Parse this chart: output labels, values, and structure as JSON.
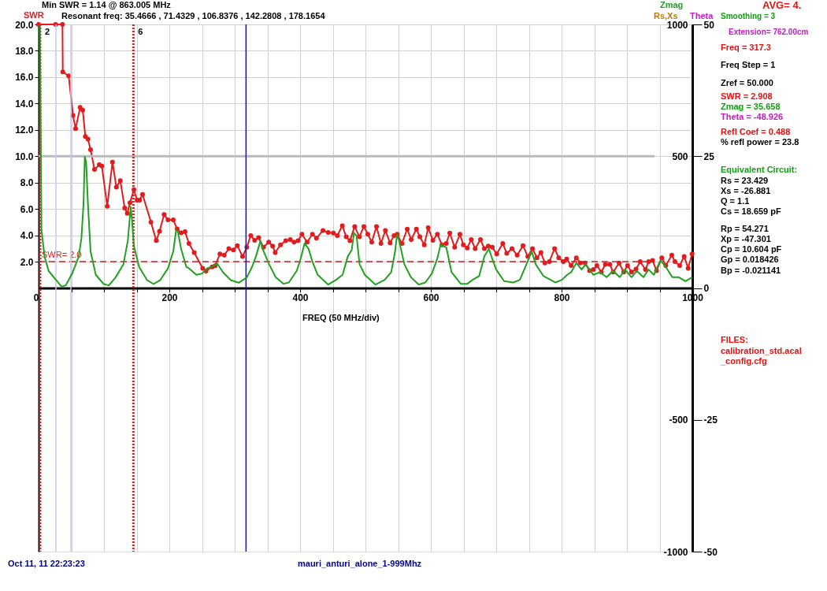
{
  "chart_data": {
    "type": "line",
    "xlabel": "FREQ (50 MHz/div)",
    "y3label": "Rs,Xs",
    "xlim": [
      0,
      1000
    ],
    "xticks": [
      0,
      {
        "value": 50,
        "label": null
      },
      {
        "value": 100,
        "label": null
      },
      {
        "value": 150,
        "label": null
      },
      200,
      {
        "value": 250,
        "label": null
      },
      {
        "value": 300,
        "label": null
      },
      {
        "value": 350,
        "label": null
      },
      400,
      {
        "value": 450,
        "label": null
      },
      {
        "value": 500,
        "label": null
      },
      {
        "value": 550,
        "label": null
      },
      600,
      {
        "value": 650,
        "label": null
      },
      {
        "value": 700,
        "label": null
      },
      {
        "value": 750,
        "label": null
      },
      800,
      {
        "value": 850,
        "label": null
      },
      {
        "value": 900,
        "label": null
      },
      {
        "value": 950,
        "label": null
      },
      1000
    ],
    "ylim": [
      -20,
      20
    ],
    "yticks": [
      {
        "value": 2,
        "label": "2.0"
      },
      {
        "value": 4,
        "label": "4.0"
      },
      {
        "value": 6,
        "label": "6.0"
      },
      {
        "value": 8,
        "label": "8.0"
      },
      {
        "value": 10,
        "label": "10.0"
      },
      {
        "value": 12,
        "label": "12.0"
      },
      {
        "value": 14,
        "label": "14.0"
      },
      {
        "value": 16,
        "label": "16.0"
      },
      {
        "value": 18,
        "label": "18.0"
      },
      {
        "value": 20,
        "label": "20.0"
      }
    ],
    "y2lim": [
      -1000,
      1000
    ],
    "y2ticks": [
      1000,
      500,
      {
        "value": 0,
        "label": null
      },
      -500,
      -1000
    ],
    "y3lim": [
      -50,
      50
    ],
    "y3ticks": [
      50,
      25,
      0,
      -25,
      -50
    ],
    "grid": true,
    "series": [
      {
        "name": "SWR",
        "color": "#e41a1c",
        "marker": "circle",
        "x": [
          0,
          26,
          36.5,
          37,
          46,
          52.6,
          56.6,
          63.5,
          67.5,
          71.5,
          75.5,
          79.5,
          85.5,
          92.8,
          96.8,
          105,
          113,
          119,
          125,
          131.7,
          135.7,
          139.8,
          145.8,
          150.6,
          154.6,
          159,
          171.9,
          180,
          185,
          192,
          198,
          206,
          212,
          218,
          224,
          230,
          238,
          251,
          256,
          265.5,
          270,
          277.5,
          284,
          291,
          298,
          304,
          312,
          318.5,
          324.5,
          330.5,
          336.5,
          344,
          352,
          358,
          362,
          370,
          378,
          385,
          390.7,
          396.8,
          402.8,
          410.8,
          418.9,
          425,
          435,
          443,
          451,
          457,
          464.6,
          470.6,
          476.3,
          483.5,
          490.7,
          497.6,
          503.6,
          509.6,
          516.9,
          523.7,
          530.5,
          537.7,
          543.7,
          548.6,
          555.8,
          563.9,
          569.9,
          577.9,
          583.2,
          590,
          596,
          603.2,
          610,
          617,
          623.5,
          629,
          636.5,
          644.5,
          649.7,
          655.7,
          661.8,
          667.8,
          675.9,
          681.9,
          687.9,
          694,
          700.8,
          710,
          716.1,
          724.1,
          732.1,
          741,
          748.3,
          755.5,
          762.3,
          768.4,
          774.4,
          781.3,
          789.3,
          795.7,
          802.6,
          807.8,
          814.6,
          822.6,
          828.7,
          835.9,
          842.8,
          848.8,
          854,
          860.8,
          866.9,
          873.7,
          879,
          888,
          895,
          901,
          907,
          913.9,
          920.3,
          928.3,
          933.2,
          939.2,
          945.3,
          953.3,
          959.4,
          968.6,
          973.5,
          980.7,
          987.5,
          993.6,
          999.6
        ],
        "values": [
          20,
          20,
          20,
          16.4,
          16.1,
          13.1,
          12.1,
          13.7,
          13.5,
          11.5,
          11.3,
          10.5,
          9.0,
          9.35,
          9.25,
          6.2,
          9.55,
          7.65,
          8.15,
          6.07,
          5.67,
          6.47,
          7.46,
          6.67,
          6.67,
          7.1,
          5.0,
          3.6,
          4.3,
          5.57,
          5.17,
          5.17,
          4.48,
          4.18,
          4.28,
          3.38,
          2.69,
          1.49,
          1.29,
          1.6,
          1.69,
          2.59,
          2.49,
          2.99,
          2.89,
          3.22,
          2.39,
          3.09,
          3.98,
          3.62,
          3.82,
          3.09,
          3.48,
          3.18,
          2.69,
          3.28,
          3.58,
          3.68,
          3.48,
          3.58,
          4.08,
          3.48,
          4.08,
          3.78,
          4.37,
          4.21,
          4.17,
          3.98,
          4.73,
          3.88,
          3.58,
          4.67,
          3.88,
          4.67,
          4.08,
          3.48,
          4.67,
          3.38,
          4.37,
          3.42,
          3.98,
          4.08,
          3.38,
          4.47,
          3.68,
          4.47,
          3.88,
          3.28,
          4.57,
          3.62,
          4.08,
          3.28,
          3.38,
          4.17,
          3.09,
          4.08,
          3.28,
          3.03,
          3.68,
          2.99,
          3.68,
          2.99,
          3.18,
          3.09,
          2.59,
          3.38,
          2.63,
          2.99,
          2.49,
          3.22,
          2.39,
          2.99,
          2.29,
          2.69,
          1.9,
          2.0,
          2.99,
          2.29,
          2.0,
          2.2,
          1.7,
          2.29,
          1.9,
          1.9,
          1.31,
          1.4,
          1.7,
          1.21,
          1.8,
          1.8,
          1.21,
          1.9,
          1.21,
          1.7,
          1.21,
          1.44,
          2.0,
          1.4,
          2.0,
          2.1,
          1.31,
          2.29,
          1.7,
          2.49,
          2.0,
          1.7,
          2.39,
          1.5,
          2.59
        ]
      },
      {
        "name": "Zmag",
        "color": "#22a022",
        "axis": "y2",
        "marker": "none",
        "x": [
          2,
          4.4,
          9.2,
          15.3,
          25.3,
          35.3,
          41.4,
          51.4,
          61.4,
          65.5,
          68.7,
          70.7,
          72.7,
          75.5,
          79.5,
          87.5,
          99.6,
          107.6,
          117.7,
          129.7,
          136.5,
          140.9,
          142.9,
          145.8,
          153.8,
          165.9,
          175.9,
          186,
          198,
          206,
          210.4,
          213,
          218,
          226,
          230,
          241.4,
          250,
          258,
          266,
          273.5,
          282,
          294,
          306,
          318.5,
          326.5,
          332.5,
          339.4,
          342.6,
          352.6,
          362.7,
          374.7,
          382.8,
          394.8,
          400.8,
          406.8,
          412.9,
          418.9,
          426.9,
          443,
          455,
          465,
          473,
          479,
          482.4,
          486.3,
          491,
          499,
          515.3,
          529.4,
          539.4,
          545.4,
          548.3,
          551.5,
          559.5,
          569.5,
          581.6,
          591.6,
          601.6,
          609.7,
          614.9,
          623.7,
          631.7,
          645.8,
          655.9,
          663.9,
          673.9,
          681.9,
          688.8,
          694,
          700,
          712.1,
          726.2,
          736.2,
          746.3,
          754.3,
          760.4,
          772.4,
          790.5,
          800.5,
          808.6,
          814.6,
          822.6,
          830.7,
          836.7,
          848.8,
          858.8,
          868.9,
          878.9,
          889,
          897,
          907,
          915,
          925.1,
          933.2,
          941.2,
          951.2,
          959.4,
          969.4,
          979.4,
          989.5,
          999.6
        ],
        "values": [
          1000,
          219,
          119,
          65,
          35,
          5,
          10,
          55,
          119,
          189,
          318,
          498,
          478,
          318,
          139,
          50,
          15,
          10,
          40,
          90,
          179,
          308,
          259,
          159,
          80,
          30,
          15,
          30,
          75,
          139,
          219,
          214,
          149,
          80,
          75,
          50,
          55,
          75,
          82,
          92,
          60,
          30,
          20,
          40,
          80,
          120,
          179,
          149,
          90,
          41,
          16,
          21,
          65,
          110,
          169,
          149,
          100,
          50,
          13,
          31,
          50,
          120,
          144,
          209,
          199,
          90,
          50,
          13,
          31,
          60,
          139,
          204,
          179,
          90,
          41,
          13,
          21,
          55,
          110,
          164,
          154,
          60,
          16,
          16,
          31,
          45,
          120,
          149,
          110,
          70,
          26,
          21,
          31,
          90,
          139,
          90,
          45,
          21,
          31,
          50,
          60,
          95,
          70,
          90,
          50,
          60,
          41,
          65,
          41,
          70,
          41,
          65,
          41,
          70,
          50,
          105,
          80,
          41,
          41,
          26,
          41
        ]
      }
    ],
    "ref_lines": [
      {
        "axis": "y",
        "value": 10,
        "label": null,
        "color": "#bbbbbb",
        "line_style": "solid"
      },
      {
        "axis": "y",
        "value": 2,
        "label": "SWR= 2.0",
        "color": "#d42020",
        "line_style": "dashed"
      },
      {
        "axis": "x",
        "value": 2.4,
        "label": null,
        "color": "#d42020",
        "line_style": "dotted"
      },
      {
        "axis": "x",
        "value": 26.5,
        "label": null,
        "color": "#c8c8f0",
        "line_style": "solid"
      },
      {
        "axis": "x",
        "value": 49.4,
        "label": null,
        "color": "#c8c8f0",
        "line_style": "solid"
      },
      {
        "axis": "x",
        "value": 145,
        "label": null,
        "color": "#d42020",
        "line_style": "dotted"
      },
      {
        "axis": "x",
        "value": 317.3,
        "label": null,
        "color": "#1a1a8c",
        "line_style": "solid"
      }
    ],
    "annotations": [
      "Min SWR =   1.14 @  863.005 MHz",
      "Resonant freq:  35.4666 , 71.4329 , 106.8376 , 142.2808 , 178.1654",
      "AVG=  4.",
      "Smoothing = 3",
      "Extension= 762.00cm",
      "Freq = 317.3",
      "Freq Step = 1",
      "Zref =   50.000",
      "SWR  =    2.908",
      "Zmag  =  35.658",
      "Theta  =  -48.926",
      "Refl Coef   = 0.488",
      "% refl power = 23.8",
      "Equivalent Circuit:",
      "Rs =   23.429",
      "Xs =  -26.881",
      "Q =   1.1",
      "Cs =    18.659  pF",
      "Rp =    54.271",
      "Xp =   -47.301",
      "Cp =   10.604  pF",
      "Gp =   0.018426",
      "Bp =  -0.021141",
      "FILES:",
      "calibration_std.acal",
      "_config.cfg",
      "Oct 11, 11   22:23:23",
      "mauri_anturi_alone_1-999Mhz",
      "Theta",
      {
        "text": "2",
        "x": 2.4,
        "y": 19.4
      },
      {
        "text": "6",
        "x": 145,
        "y": 19.4
      }
    ]
  }
}
